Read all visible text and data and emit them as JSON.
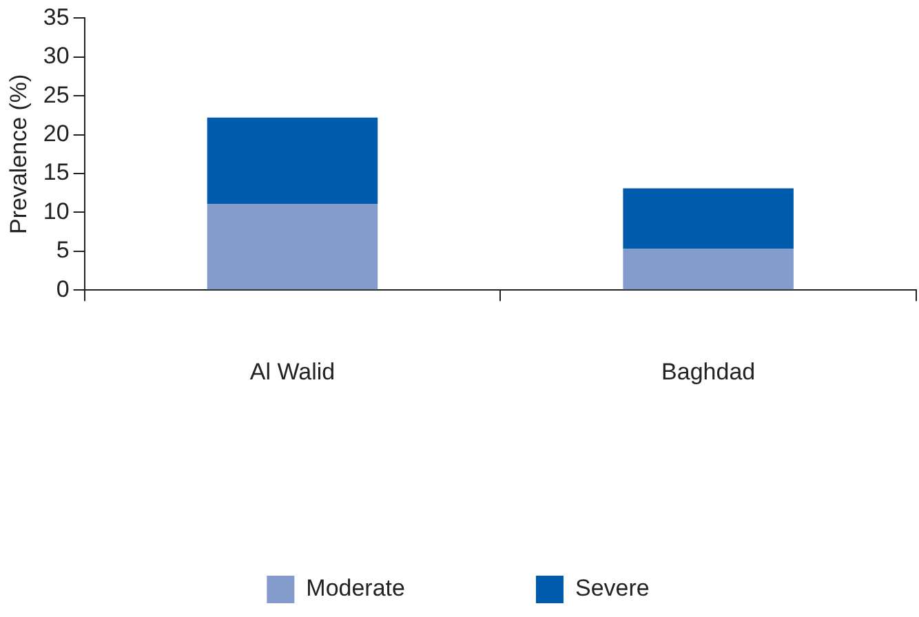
{
  "chart_data": {
    "type": "bar",
    "stacked": true,
    "ylabel": "Prevalence (%)",
    "categories": [
      "Al Walid",
      "Baghdad"
    ],
    "series": [
      {
        "name": "Moderate",
        "color": "#849ccc",
        "values": [
          11.1,
          5.3
        ]
      },
      {
        "name": "Severe",
        "color": "#005bac",
        "values": [
          11.1,
          7.8
        ]
      }
    ],
    "ylim": [
      0,
      35
    ],
    "yticks": [
      0,
      5,
      10,
      15,
      20,
      25,
      30,
      35
    ],
    "grid": false,
    "legend": "bottom"
  }
}
